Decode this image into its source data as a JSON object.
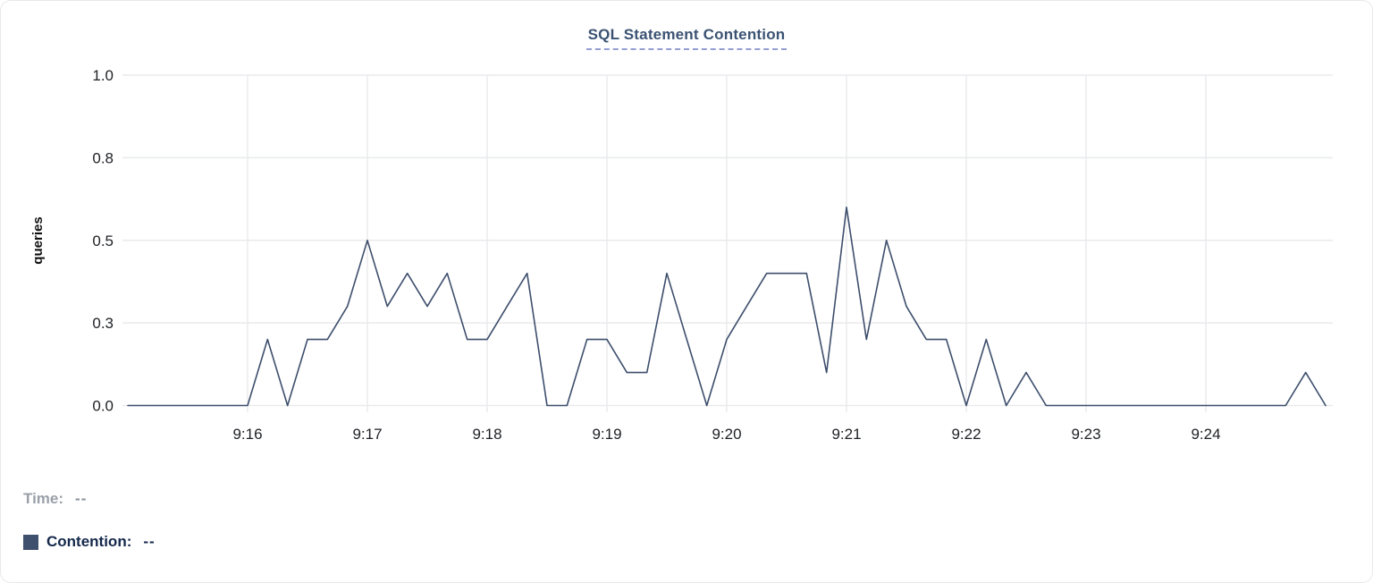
{
  "title": "SQL Statement Contention",
  "legend": {
    "time_label": "Time:",
    "time_value": "--",
    "contention_label": "Contention:",
    "contention_value": "--"
  },
  "colors": {
    "line": "#3d4e6c",
    "swatch": "#3f4f6e",
    "title_text": "#3b5273",
    "title_underline": "#959ed1",
    "grid": "#e9eaec",
    "tick_text": "#202226",
    "axis_title_text": "#111111",
    "legend_time_text": "#9aa0a8",
    "legend_contention_text": "#14284b"
  },
  "chart_data": {
    "type": "line",
    "title": "SQL Statement Contention",
    "xlabel": "",
    "ylabel": "queries",
    "ylim": [
      0,
      1
    ],
    "grid": true,
    "legend_position": "bottom-left",
    "x_start": "9:15:00",
    "x_end": "9:25:00",
    "step_seconds": 10,
    "y_ticks": [
      {
        "value": 1.0,
        "label": "1.0"
      },
      {
        "value": 0.75,
        "label": "0.8"
      },
      {
        "value": 0.5,
        "label": "0.5"
      },
      {
        "value": 0.25,
        "label": "0.3"
      },
      {
        "value": 0.0,
        "label": "0.0"
      }
    ],
    "x_ticks": [
      {
        "t": 60,
        "label": "9:16"
      },
      {
        "t": 120,
        "label": "9:17"
      },
      {
        "t": 180,
        "label": "9:18"
      },
      {
        "t": 240,
        "label": "9:19"
      },
      {
        "t": 300,
        "label": "9:20"
      },
      {
        "t": 360,
        "label": "9:21"
      },
      {
        "t": 420,
        "label": "9:22"
      },
      {
        "t": 480,
        "label": "9:23"
      },
      {
        "t": 540,
        "label": "9:24"
      }
    ],
    "series": [
      {
        "name": "Contention",
        "color": "#3d4e6c",
        "times": [
          "9:15:00",
          "9:15:10",
          "9:15:20",
          "9:15:30",
          "9:15:40",
          "9:15:50",
          "9:16:00",
          "9:16:10",
          "9:16:20",
          "9:16:30",
          "9:16:40",
          "9:16:50",
          "9:17:00",
          "9:17:10",
          "9:17:20",
          "9:17:30",
          "9:17:40",
          "9:17:50",
          "9:18:00",
          "9:18:10",
          "9:18:20",
          "9:18:30",
          "9:18:40",
          "9:18:50",
          "9:19:00",
          "9:19:10",
          "9:19:20",
          "9:19:30",
          "9:19:40",
          "9:19:50",
          "9:20:00",
          "9:20:10",
          "9:20:20",
          "9:20:30",
          "9:20:40",
          "9:20:50",
          "9:21:00",
          "9:21:10",
          "9:21:20",
          "9:21:30",
          "9:21:40",
          "9:21:50",
          "9:22:00",
          "9:22:10",
          "9:22:20",
          "9:22:30",
          "9:22:40",
          "9:22:50",
          "9:23:00",
          "9:23:10",
          "9:23:20",
          "9:23:30",
          "9:23:40",
          "9:23:50",
          "9:24:00",
          "9:24:10",
          "9:24:20",
          "9:24:30",
          "9:24:40",
          "9:24:50",
          "9:25:00"
        ],
        "values": [
          0,
          0,
          0,
          0,
          0,
          0,
          0,
          0.2,
          0,
          0.2,
          0.2,
          0.3,
          0.5,
          0.3,
          0.4,
          0.3,
          0.4,
          0.2,
          0.2,
          0.3,
          0.4,
          0,
          0,
          0.2,
          0.2,
          0.1,
          0.1,
          0.4,
          0.2,
          0,
          0.2,
          0.3,
          0.4,
          0.4,
          0.4,
          0.1,
          0.6,
          0.2,
          0.5,
          0.3,
          0.2,
          0.2,
          0,
          0.2,
          0,
          0.1,
          0,
          0,
          0,
          0,
          0,
          0,
          0,
          0,
          0,
          0,
          0,
          0,
          0,
          0.1,
          0
        ]
      }
    ]
  }
}
